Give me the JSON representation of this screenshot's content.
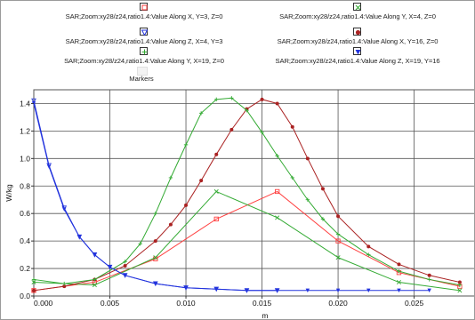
{
  "chart_data": {
    "type": "line",
    "title": "",
    "xlabel": "m",
    "ylabel": "W/kg",
    "xlim": [
      0,
      0.029
    ],
    "ylim": [
      0,
      1.5
    ],
    "x_ticks": [
      "0.000",
      "0.005",
      "0.010",
      "0.015",
      "0.020",
      "0.025"
    ],
    "y_ticks": [
      "0.0",
      "0.2",
      "0.4",
      "0.6",
      "0.8",
      "1.0",
      "1.2",
      "1.4"
    ],
    "grid": true,
    "legend_position": "top",
    "markers_label": "Markers",
    "series": [
      {
        "name": "SAR;Zoom:xy28/z24,ratio1.4:Value Along X, Y=3, Z=0",
        "color": "#ff4040",
        "marker": "square",
        "x": [
          0.0,
          0.004,
          0.008,
          0.012,
          0.016,
          0.02,
          0.024,
          0.028
        ],
        "y": [
          0.04,
          0.1,
          0.27,
          0.56,
          0.76,
          0.4,
          0.17,
          0.07
        ]
      },
      {
        "name": "SAR;Zoom:xy28/z24,ratio1.4:Value Along Y, X=4, Z=0",
        "color": "#33aa33",
        "marker": "x",
        "x": [
          0.0,
          0.004,
          0.008,
          0.012,
          0.016,
          0.02,
          0.024,
          0.028
        ],
        "y": [
          0.1,
          0.08,
          0.28,
          0.76,
          0.57,
          0.28,
          0.1,
          0.04
        ]
      },
      {
        "name": "SAR;Zoom:xy28/z24,ratio1.4:Value Along Z, X=4, Y=3",
        "color": "#2233dd",
        "marker": "triangle-down-open",
        "x": [
          0.0,
          0.001,
          0.002,
          0.003,
          0.004,
          0.005,
          0.006,
          0.008,
          0.01,
          0.012,
          0.014,
          0.016
        ],
        "y": [
          1.42,
          0.95,
          0.64,
          0.43,
          0.3,
          0.21,
          0.15,
          0.09,
          0.06,
          0.05,
          0.04,
          0.04
        ]
      },
      {
        "name": "SAR;Zoom:xy28/z24,ratio1.4:Value Along X, Y=16, Z=0",
        "color": "#aa2222",
        "marker": "circle",
        "x": [
          0.0,
          0.002,
          0.004,
          0.006,
          0.008,
          0.009,
          0.01,
          0.011,
          0.012,
          0.013,
          0.014,
          0.015,
          0.016,
          0.017,
          0.018,
          0.019,
          0.02,
          0.022,
          0.024,
          0.026,
          0.028
        ],
        "y": [
          0.04,
          0.07,
          0.12,
          0.22,
          0.4,
          0.52,
          0.66,
          0.84,
          1.03,
          1.21,
          1.36,
          1.43,
          1.4,
          1.23,
          1.0,
          0.78,
          0.58,
          0.36,
          0.23,
          0.15,
          0.1
        ]
      },
      {
        "name": "SAR;Zoom:xy28/z24,ratio1.4:Value Along Y, X=19, Z=0",
        "color": "#33aa33",
        "marker": "plus",
        "x": [
          0.0,
          0.002,
          0.004,
          0.006,
          0.007,
          0.008,
          0.009,
          0.01,
          0.011,
          0.012,
          0.013,
          0.014,
          0.015,
          0.016,
          0.017,
          0.018,
          0.019,
          0.02,
          0.022,
          0.024,
          0.026,
          0.028
        ],
        "y": [
          0.12,
          0.09,
          0.12,
          0.25,
          0.38,
          0.6,
          0.86,
          1.1,
          1.33,
          1.43,
          1.44,
          1.35,
          1.19,
          1.02,
          0.86,
          0.7,
          0.56,
          0.45,
          0.3,
          0.18,
          0.12,
          0.08
        ]
      },
      {
        "name": "SAR;Zoom:xy28/z24,ratio1.4:Value Along Z, X=19, Y=16",
        "color": "#2233dd",
        "marker": "triangle-down",
        "x": [
          0.0,
          0.001,
          0.002,
          0.003,
          0.004,
          0.005,
          0.006,
          0.008,
          0.01,
          0.012,
          0.014,
          0.016,
          0.018,
          0.02,
          0.022,
          0.024,
          0.026
        ],
        "y": [
          1.4,
          0.94,
          0.63,
          0.43,
          0.3,
          0.21,
          0.15,
          0.09,
          0.06,
          0.05,
          0.04,
          0.04,
          0.04,
          0.04,
          0.04,
          0.04,
          0.04
        ]
      }
    ]
  }
}
